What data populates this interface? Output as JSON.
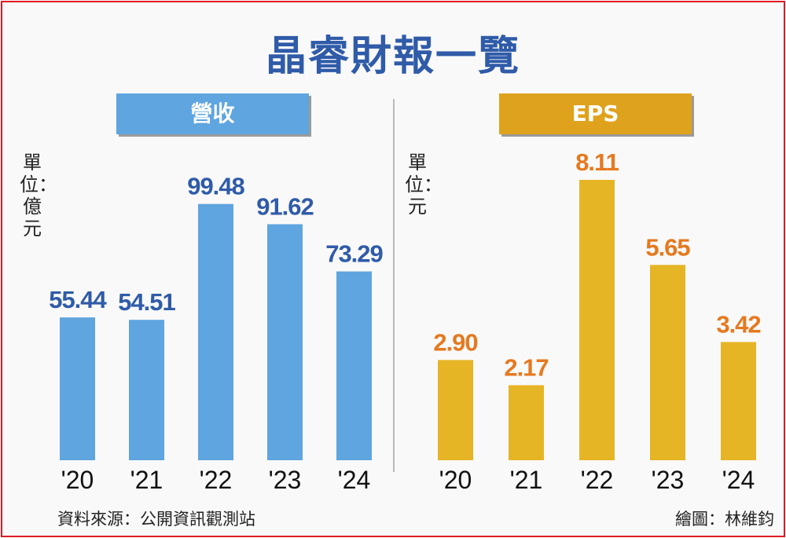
{
  "title": "晶睿財報一覽",
  "source": "資料來源：公開資訊觀測站",
  "credit": "繪圖：林維鈞",
  "colors": {
    "revenue_header": "#5fa5df",
    "revenue_bar": "#5fa5df",
    "revenue_label": "#2f5ba8",
    "eps_header": "#dea21c",
    "eps_bar": "#e6b526",
    "eps_label": "#e5791f",
    "frame": "#e01b24"
  },
  "chart_data": [
    {
      "type": "bar",
      "title": "營收",
      "unit": "單位：億元",
      "categories": [
        "'20",
        "'21",
        "'22",
        "'23",
        "'24"
      ],
      "values": [
        55.44,
        54.51,
        99.48,
        91.62,
        73.29
      ],
      "value_labels": [
        "55.44",
        "54.51",
        "99.48",
        "91.62",
        "73.29"
      ],
      "ylim": [
        0,
        100
      ]
    },
    {
      "type": "bar",
      "title": "EPS",
      "unit": "單位：元",
      "categories": [
        "'20",
        "'21",
        "'22",
        "'23",
        "'24"
      ],
      "values": [
        2.9,
        2.17,
        8.11,
        5.65,
        3.42
      ],
      "value_labels": [
        "2.90",
        "2.17",
        "8.11",
        "5.65",
        "3.42"
      ],
      "ylim": [
        0,
        8.11
      ]
    }
  ]
}
